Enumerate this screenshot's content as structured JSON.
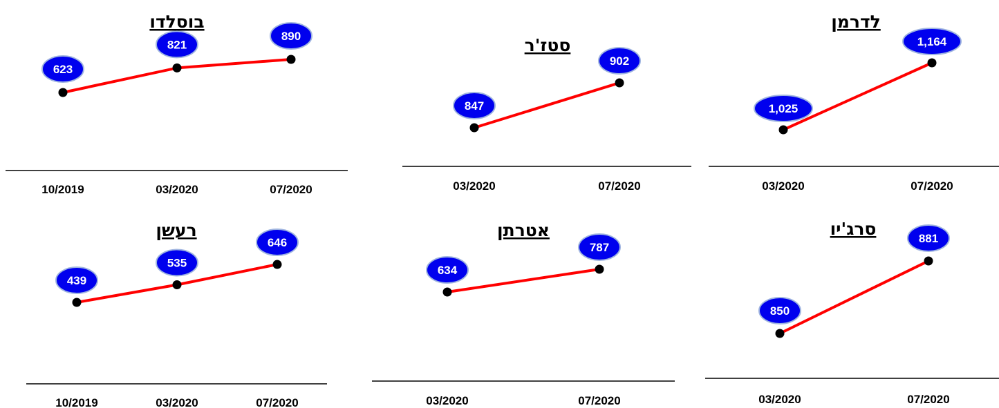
{
  "colors": {
    "line": "#ff0000",
    "marker": "#000000",
    "bubble_fill": "#0000ee",
    "bubble_stroke": "#9fb4e0",
    "bubble_text": "#ffffff",
    "axis": "#000000"
  },
  "chart_data": [
    {
      "type": "line",
      "title": "בוסלדו",
      "categories": [
        "10/2019",
        "03/2020",
        "07/2020"
      ],
      "values": [
        623,
        821,
        890
      ],
      "value_labels": [
        "623",
        "821",
        "890"
      ]
    },
    {
      "type": "line",
      "title": "סטז'ר",
      "categories": [
        "03/2020",
        "07/2020"
      ],
      "values": [
        847,
        902
      ],
      "value_labels": [
        "847",
        "902"
      ]
    },
    {
      "type": "line",
      "title": "לדרמן",
      "categories": [
        "03/2020",
        "07/2020"
      ],
      "values": [
        1025,
        1164
      ],
      "value_labels": [
        "1,025",
        "1,164"
      ]
    },
    {
      "type": "line",
      "title": "רעשן",
      "categories": [
        "10/2019",
        "03/2020",
        "07/2020"
      ],
      "values": [
        439,
        535,
        646
      ],
      "value_labels": [
        "439",
        "535",
        "646"
      ]
    },
    {
      "type": "line",
      "title": "אטרתן",
      "categories": [
        "03/2020",
        "07/2020"
      ],
      "values": [
        634,
        787
      ],
      "value_labels": [
        "634",
        "787"
      ]
    },
    {
      "type": "line",
      "title": "סרג'יו",
      "categories": [
        "03/2020",
        "07/2020"
      ],
      "values": [
        850,
        881
      ],
      "value_labels": [
        "850",
        "881"
      ]
    }
  ]
}
